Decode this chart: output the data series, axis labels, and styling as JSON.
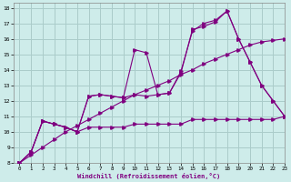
{
  "xlabel": "Windchill (Refroidissement éolien,°C)",
  "background_color": "#ceecea",
  "grid_color": "#aaccca",
  "line_color": "#800080",
  "xlim": [
    -0.5,
    23
  ],
  "ylim": [
    8,
    18.3
  ],
  "xticks": [
    0,
    1,
    2,
    3,
    4,
    5,
    6,
    7,
    8,
    9,
    10,
    11,
    12,
    13,
    14,
    15,
    16,
    17,
    18,
    19,
    20,
    21,
    22,
    23
  ],
  "yticks": [
    8,
    9,
    10,
    11,
    12,
    13,
    14,
    15,
    16,
    17,
    18
  ],
  "series1_x": [
    0,
    1,
    2,
    3,
    4,
    5,
    6,
    7,
    8,
    9,
    10,
    11,
    12,
    13,
    14,
    15,
    16,
    17,
    18,
    19,
    20,
    21,
    22,
    23
  ],
  "series1_y": [
    8.0,
    8.7,
    10.7,
    10.5,
    10.3,
    10.0,
    10.3,
    10.3,
    10.3,
    10.3,
    10.5,
    10.5,
    10.5,
    10.5,
    10.5,
    10.8,
    10.8,
    10.8,
    10.8,
    10.8,
    10.8,
    10.8,
    10.8,
    11.0
  ],
  "series2_x": [
    0,
    1,
    2,
    3,
    4,
    5,
    6,
    7,
    8,
    9,
    10,
    11,
    12,
    13,
    14,
    15,
    16,
    17,
    18,
    19,
    20,
    21,
    22,
    23
  ],
  "series2_y": [
    8.0,
    8.5,
    9.0,
    9.5,
    10.0,
    10.4,
    10.8,
    11.2,
    11.6,
    12.0,
    12.4,
    12.7,
    13.0,
    13.3,
    13.7,
    14.0,
    14.4,
    14.7,
    15.0,
    15.3,
    15.6,
    15.8,
    15.9,
    16.0
  ],
  "series3_x": [
    0,
    1,
    2,
    3,
    4,
    5,
    6,
    7,
    8,
    9,
    10,
    11,
    12,
    13,
    14,
    15,
    16,
    17,
    18,
    19,
    20,
    21,
    22,
    23
  ],
  "series3_y": [
    8.0,
    8.7,
    10.7,
    10.5,
    10.3,
    10.0,
    12.3,
    12.4,
    12.3,
    12.2,
    15.3,
    15.1,
    12.4,
    12.5,
    13.9,
    16.5,
    17.0,
    17.2,
    17.8,
    16.0,
    14.5,
    13.0,
    12.0,
    11.0
  ],
  "series4_x": [
    0,
    1,
    2,
    3,
    4,
    5,
    6,
    7,
    8,
    9,
    10,
    11,
    12,
    13,
    14,
    15,
    16,
    17,
    18,
    19,
    20,
    21,
    22,
    23
  ],
  "series4_y": [
    8.0,
    8.7,
    10.7,
    10.5,
    10.3,
    10.0,
    12.3,
    12.4,
    12.3,
    12.2,
    12.4,
    12.3,
    12.4,
    12.5,
    13.8,
    16.6,
    16.8,
    17.1,
    17.8,
    16.0,
    14.5,
    13.0,
    12.0,
    11.0
  ]
}
